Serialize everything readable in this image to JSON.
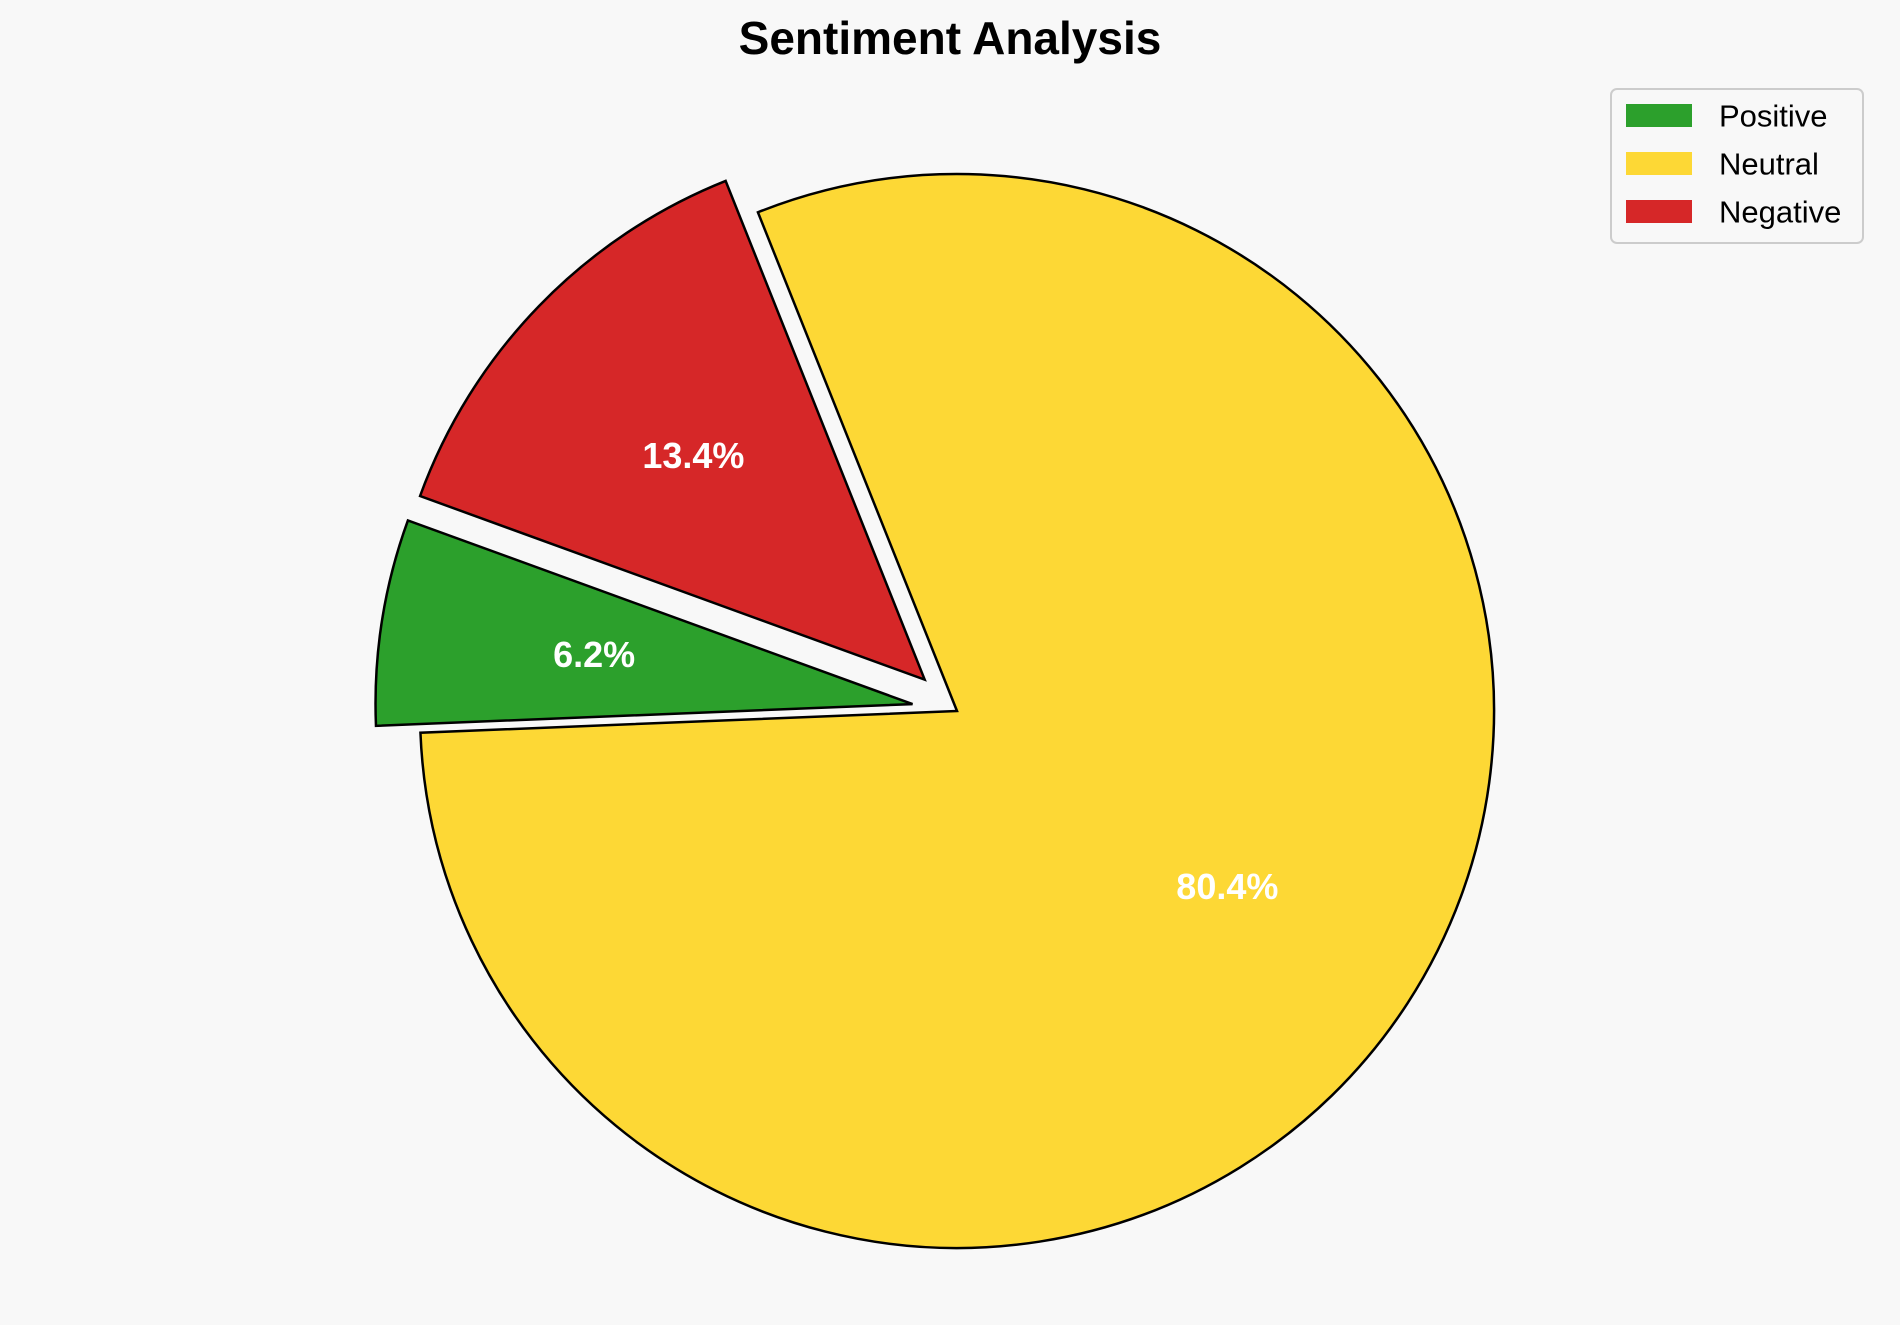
{
  "chart_data": {
    "type": "pie",
    "title": "Sentiment Analysis",
    "categories": [
      "Positive",
      "Neutral",
      "Negative"
    ],
    "values": [
      6.2,
      80.4,
      13.4
    ],
    "labels": [
      "6.2%",
      "80.4%",
      "13.4%"
    ],
    "colors": [
      "#2ca02c",
      "#fdd835",
      "#d62728"
    ],
    "exploded": [
      true,
      false,
      true
    ],
    "start_angle_deg": 160,
    "direction": "counterclockwise",
    "edge_color": "#000000",
    "legend_position": "top-right"
  }
}
